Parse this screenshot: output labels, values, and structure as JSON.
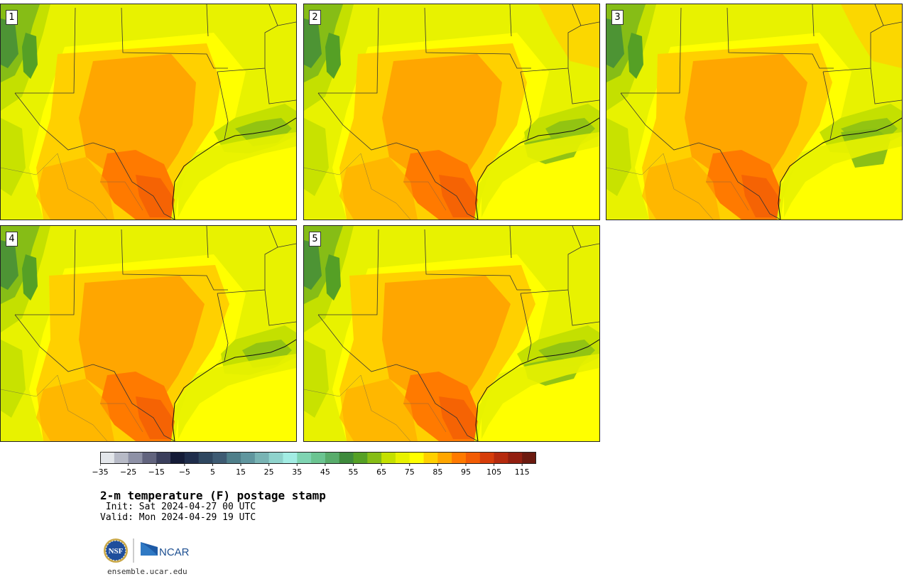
{
  "map": {
    "title": "2-m temperature (F) postage stamp",
    "init": " Init: Sat 2024-04-27 00 UTC",
    "valid": "Valid: Mon 2024-04-29 19 UTC",
    "members": [
      {
        "label": "1",
        "variant": 0
      },
      {
        "label": "2",
        "variant": 1
      },
      {
        "label": "3",
        "variant": 2
      },
      {
        "label": "4",
        "variant": 3
      },
      {
        "label": "5",
        "variant": 4
      }
    ],
    "colorbar": {
      "bounds": [
        -35,
        115
      ],
      "colors": [
        "#e3e6ea",
        "#b7bac6",
        "#8e91a6",
        "#62647e",
        "#3b3f5c",
        "#141b37",
        "#1f2d4b",
        "#2f4760",
        "#3e5b73",
        "#4f7f8a",
        "#60969e",
        "#79b4b4",
        "#8fd3cc",
        "#a2ece3",
        "#7fd4b2",
        "#6bc491",
        "#58ac6b",
        "#3e8a3c",
        "#55a025",
        "#86bd16",
        "#c4e000",
        "#e8f200",
        "#ffff00",
        "#ffd000",
        "#ffa600",
        "#ff7a00",
        "#f25c05",
        "#d63d0a",
        "#b52a0e",
        "#921f10",
        "#6b1a0f"
      ],
      "tick_labels": [
        "−35",
        "−25",
        "−15",
        "−5",
        "5",
        "15",
        "25",
        "35",
        "45",
        "55",
        "65",
        "75",
        "85",
        "95",
        "105",
        "115"
      ]
    },
    "logos": {
      "nsf": "NSF",
      "ncar": "NCAR"
    },
    "url": "ensemble.ucar.edu"
  }
}
